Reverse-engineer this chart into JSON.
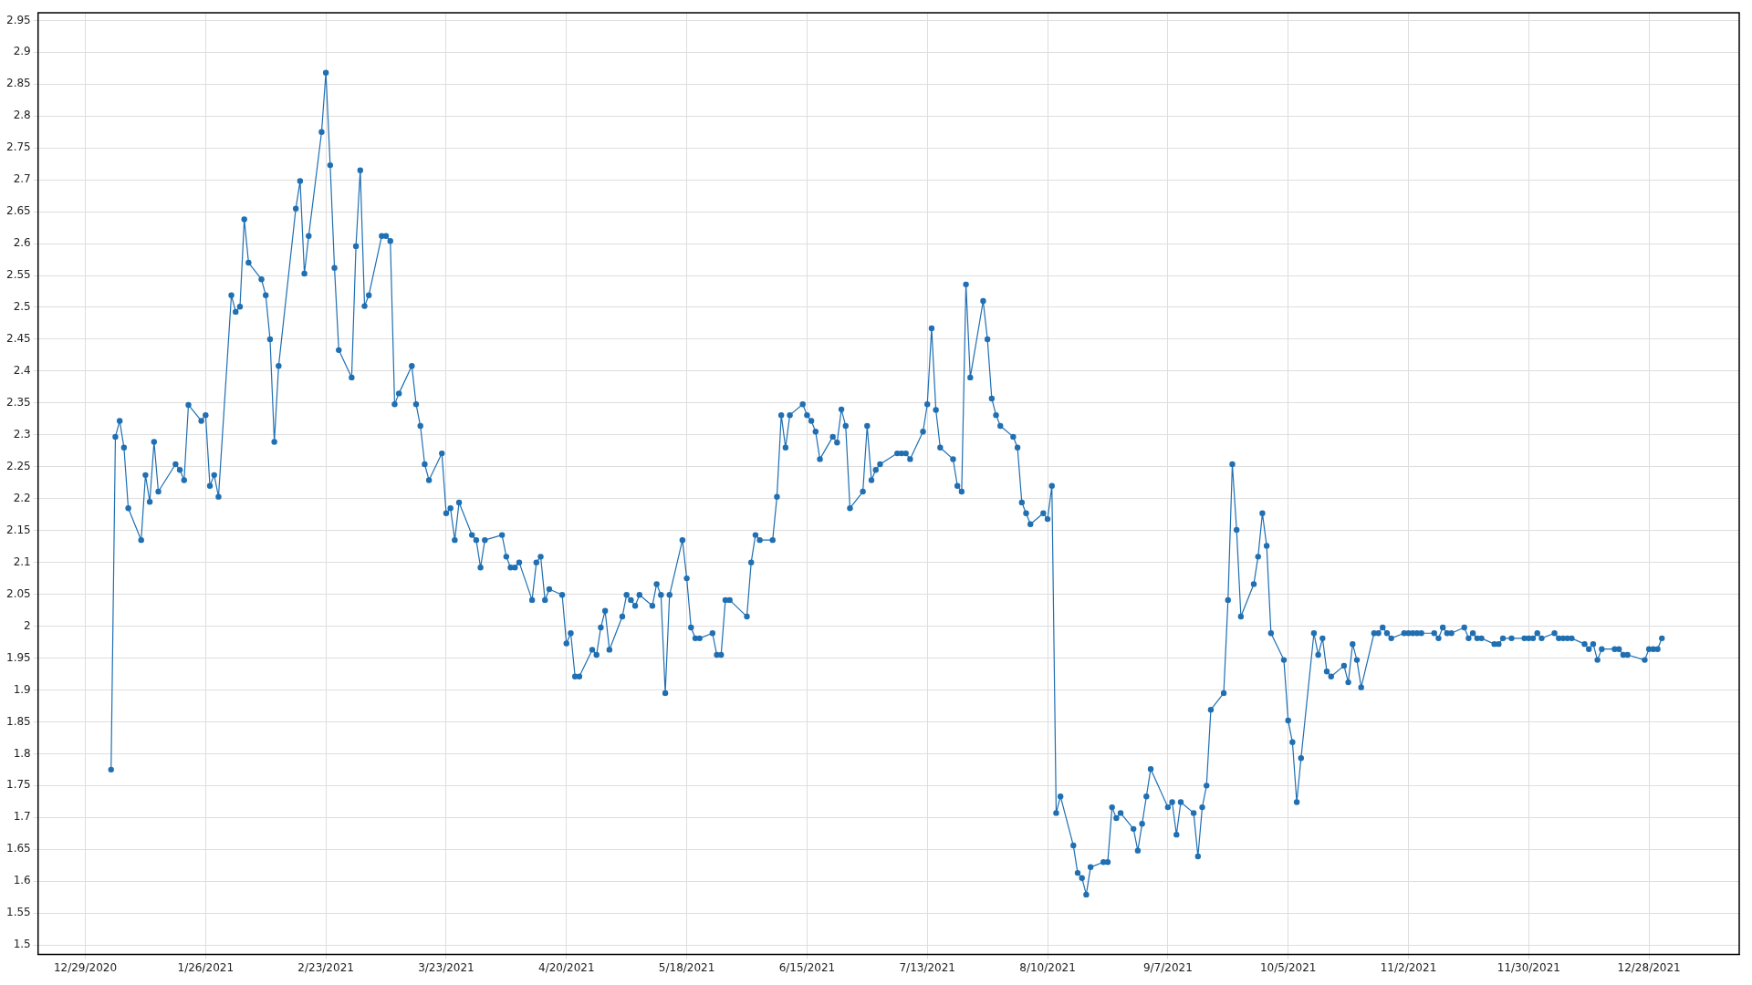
{
  "chart_data": {
    "type": "line",
    "x": [
      "2021-01-04",
      "2021-01-05",
      "2021-01-06",
      "2021-01-07",
      "2021-01-08",
      "2021-01-11",
      "2021-01-12",
      "2021-01-13",
      "2021-01-14",
      "2021-01-15",
      "2021-01-19",
      "2021-01-20",
      "2021-01-21",
      "2021-01-22",
      "2021-01-25",
      "2021-01-26",
      "2021-01-27",
      "2021-01-28",
      "2021-01-29",
      "2021-02-01",
      "2021-02-02",
      "2021-02-03",
      "2021-02-04",
      "2021-02-05",
      "2021-02-08",
      "2021-02-09",
      "2021-02-10",
      "2021-02-11",
      "2021-02-12",
      "2021-02-16",
      "2021-02-17",
      "2021-02-18",
      "2021-02-19",
      "2021-02-22",
      "2021-02-23",
      "2021-02-24",
      "2021-02-25",
      "2021-02-26",
      "2021-03-01",
      "2021-03-02",
      "2021-03-03",
      "2021-03-04",
      "2021-03-05",
      "2021-03-08",
      "2021-03-09",
      "2021-03-10",
      "2021-03-11",
      "2021-03-12",
      "2021-03-15",
      "2021-03-16",
      "2021-03-17",
      "2021-03-18",
      "2021-03-19",
      "2021-03-22",
      "2021-03-23",
      "2021-03-24",
      "2021-03-25",
      "2021-03-26",
      "2021-03-29",
      "2021-03-30",
      "2021-03-31",
      "2021-04-01",
      "2021-04-05",
      "2021-04-06",
      "2021-04-07",
      "2021-04-08",
      "2021-04-09",
      "2021-04-12",
      "2021-04-13",
      "2021-04-14",
      "2021-04-15",
      "2021-04-16",
      "2021-04-19",
      "2021-04-20",
      "2021-04-21",
      "2021-04-22",
      "2021-04-23",
      "2021-04-26",
      "2021-04-27",
      "2021-04-28",
      "2021-04-29",
      "2021-04-30",
      "2021-05-03",
      "2021-05-04",
      "2021-05-05",
      "2021-05-06",
      "2021-05-07",
      "2021-05-10",
      "2021-05-11",
      "2021-05-12",
      "2021-05-13",
      "2021-05-14",
      "2021-05-17",
      "2021-05-18",
      "2021-05-19",
      "2021-05-20",
      "2021-05-21",
      "2021-05-24",
      "2021-05-25",
      "2021-05-26",
      "2021-05-27",
      "2021-05-28",
      "2021-06-01",
      "2021-06-02",
      "2021-06-03",
      "2021-06-04",
      "2021-06-07",
      "2021-06-08",
      "2021-06-09",
      "2021-06-10",
      "2021-06-11",
      "2021-06-14",
      "2021-06-15",
      "2021-06-16",
      "2021-06-17",
      "2021-06-18",
      "2021-06-21",
      "2021-06-22",
      "2021-06-23",
      "2021-06-24",
      "2021-06-25",
      "2021-06-28",
      "2021-06-29",
      "2021-06-30",
      "2021-07-01",
      "2021-07-02",
      "2021-07-06",
      "2021-07-07",
      "2021-07-08",
      "2021-07-09",
      "2021-07-12",
      "2021-07-13",
      "2021-07-14",
      "2021-07-15",
      "2021-07-16",
      "2021-07-19",
      "2021-07-20",
      "2021-07-21",
      "2021-07-22",
      "2021-07-23",
      "2021-07-26",
      "2021-07-27",
      "2021-07-28",
      "2021-07-29",
      "2021-07-30",
      "2021-08-02",
      "2021-08-03",
      "2021-08-04",
      "2021-08-05",
      "2021-08-06",
      "2021-08-09",
      "2021-08-10",
      "2021-08-11",
      "2021-08-12",
      "2021-08-13",
      "2021-08-16",
      "2021-08-17",
      "2021-08-18",
      "2021-08-19",
      "2021-08-20",
      "2021-08-23",
      "2021-08-24",
      "2021-08-25",
      "2021-08-26",
      "2021-08-27",
      "2021-08-30",
      "2021-08-31",
      "2021-09-01",
      "2021-09-02",
      "2021-09-03",
      "2021-09-07",
      "2021-09-08",
      "2021-09-09",
      "2021-09-10",
      "2021-09-13",
      "2021-09-14",
      "2021-09-15",
      "2021-09-16",
      "2021-09-17",
      "2021-09-20",
      "2021-09-21",
      "2021-09-22",
      "2021-09-23",
      "2021-09-24",
      "2021-09-27",
      "2021-09-28",
      "2021-09-29",
      "2021-09-30",
      "2021-10-01",
      "2021-10-04",
      "2021-10-05",
      "2021-10-06",
      "2021-10-07",
      "2021-10-08",
      "2021-10-11",
      "2021-10-12",
      "2021-10-13",
      "2021-10-14",
      "2021-10-15",
      "2021-10-18",
      "2021-10-19",
      "2021-10-20",
      "2021-10-21",
      "2021-10-22",
      "2021-10-25",
      "2021-10-26",
      "2021-10-27",
      "2021-10-28",
      "2021-10-29",
      "2021-11-01",
      "2021-11-02",
      "2021-11-03",
      "2021-11-04",
      "2021-11-05",
      "2021-11-08",
      "2021-11-09",
      "2021-11-10",
      "2021-11-11",
      "2021-11-12",
      "2021-11-15",
      "2021-11-16",
      "2021-11-17",
      "2021-11-18",
      "2021-11-19",
      "2021-11-22",
      "2021-11-23",
      "2021-11-24",
      "2021-11-26",
      "2021-11-29",
      "2021-11-30",
      "2021-12-01",
      "2021-12-02",
      "2021-12-03",
      "2021-12-06",
      "2021-12-07",
      "2021-12-08",
      "2021-12-09",
      "2021-12-10",
      "2021-12-13",
      "2021-12-14",
      "2021-12-15",
      "2021-12-16",
      "2021-12-17",
      "2021-12-20",
      "2021-12-21",
      "2021-12-22",
      "2021-12-23",
      "2021-12-27",
      "2021-12-28",
      "2021-12-29",
      "2021-12-30",
      "2021-12-31"
    ],
    "series": [
      {
        "color": "#1f6fb2",
        "values": [
          1.775,
          2.297,
          2.322,
          2.28,
          2.185,
          2.135,
          2.237,
          2.195,
          2.289,
          2.211,
          2.254,
          2.245,
          2.229,
          2.347,
          2.322,
          2.331,
          2.22,
          2.237,
          2.203,
          2.519,
          2.493,
          2.501,
          2.638,
          2.57,
          2.544,
          2.519,
          2.45,
          2.289,
          2.408,
          2.655,
          2.698,
          2.553,
          2.612,
          2.775,
          2.868,
          2.723,
          2.562,
          2.433,
          2.39,
          2.596,
          2.715,
          2.502,
          2.519,
          2.612,
          2.612,
          2.604,
          2.348,
          2.365,
          2.408,
          2.348,
          2.314,
          2.254,
          2.229,
          2.271,
          2.177,
          2.185,
          2.135,
          2.194,
          2.143,
          2.135,
          2.092,
          2.135,
          2.143,
          2.109,
          2.092,
          2.092,
          2.1,
          2.041,
          2.1,
          2.109,
          2.041,
          2.058,
          2.049,
          1.973,
          1.989,
          1.921,
          1.921,
          1.963,
          1.955,
          1.998,
          2.024,
          1.963,
          2.015,
          2.049,
          2.041,
          2.032,
          2.049,
          2.032,
          2.066,
          2.049,
          1.895,
          2.049,
          2.135,
          2.075,
          1.998,
          1.981,
          1.981,
          1.989,
          1.955,
          1.955,
          2.041,
          2.041,
          2.015,
          2.1,
          2.143,
          2.135,
          2.135,
          2.203,
          2.331,
          2.28,
          2.331,
          2.348,
          2.331,
          2.322,
          2.305,
          2.262,
          2.297,
          2.288,
          2.34,
          2.314,
          2.185,
          2.211,
          2.314,
          2.229,
          2.245,
          2.254,
          2.271,
          2.271,
          2.271,
          2.262,
          2.305,
          2.348,
          2.467,
          2.339,
          2.28,
          2.262,
          2.22,
          2.211,
          2.536,
          2.39,
          2.51,
          2.45,
          2.357,
          2.331,
          2.314,
          2.297,
          2.28,
          2.194,
          2.177,
          2.16,
          2.177,
          2.168,
          2.22,
          1.707,
          1.733,
          1.656,
          1.613,
          1.605,
          1.579,
          1.622,
          1.63,
          1.63,
          1.716,
          1.699,
          1.707,
          1.682,
          1.648,
          1.69,
          1.733,
          1.776,
          1.716,
          1.724,
          1.673,
          1.724,
          1.707,
          1.639,
          1.716,
          1.75,
          1.869,
          1.895,
          2.041,
          2.254,
          2.151,
          2.015,
          2.066,
          2.109,
          2.177,
          2.126,
          1.989,
          1.947,
          1.852,
          1.818,
          1.724,
          1.793,
          1.989,
          1.955,
          1.981,
          1.929,
          1.921,
          1.938,
          1.912,
          1.972,
          1.947,
          1.904,
          1.989,
          1.989,
          1.998,
          1.989,
          1.981,
          1.989,
          1.989,
          1.989,
          1.989,
          1.989,
          1.989,
          1.981,
          1.998,
          1.989,
          1.989,
          1.998,
          1.981,
          1.989,
          1.981,
          1.981,
          1.972,
          1.972,
          1.981,
          1.981,
          1.981,
          1.981,
          1.981,
          1.989,
          1.981,
          1.989,
          1.981,
          1.981,
          1.981,
          1.981,
          1.972,
          1.964,
          1.972,
          1.947,
          1.964,
          1.964,
          1.964,
          1.955,
          1.955,
          1.947,
          1.964,
          1.964,
          1.964,
          1.981
        ]
      }
    ],
    "xlim": [
      "2020-12-18",
      "2022-01-18"
    ],
    "xticks": [
      {
        "value": "2020-12-29",
        "label": "12/29/2020"
      },
      {
        "value": "2021-01-26",
        "label": "1/26/2021"
      },
      {
        "value": "2021-02-23",
        "label": "2/23/2021"
      },
      {
        "value": "2021-03-23",
        "label": "3/23/2021"
      },
      {
        "value": "2021-04-20",
        "label": "4/20/2021"
      },
      {
        "value": "2021-05-18",
        "label": "5/18/2021"
      },
      {
        "value": "2021-06-15",
        "label": "6/15/2021"
      },
      {
        "value": "2021-07-13",
        "label": "7/13/2021"
      },
      {
        "value": "2021-08-10",
        "label": "8/10/2021"
      },
      {
        "value": "2021-09-07",
        "label": "9/7/2021"
      },
      {
        "value": "2021-10-05",
        "label": "10/5/2021"
      },
      {
        "value": "2021-11-02",
        "label": "11/2/2021"
      },
      {
        "value": "2021-11-30",
        "label": "11/30/2021"
      },
      {
        "value": "2021-12-28",
        "label": "12/28/2021"
      }
    ],
    "ylim": [
      1.485,
      2.962
    ],
    "yticks": [
      1.5,
      1.55,
      1.6,
      1.65,
      1.7,
      1.75,
      1.8,
      1.85,
      1.9,
      1.95,
      2,
      2.05,
      2.1,
      2.15,
      2.2,
      2.25,
      2.3,
      2.35,
      2.4,
      2.45,
      2.5,
      2.55,
      2.6,
      2.65,
      2.7,
      2.75,
      2.8,
      2.85,
      2.9,
      2.95
    ],
    "grid": true,
    "legend": false,
    "marker": "circle",
    "line_style": "solid"
  }
}
